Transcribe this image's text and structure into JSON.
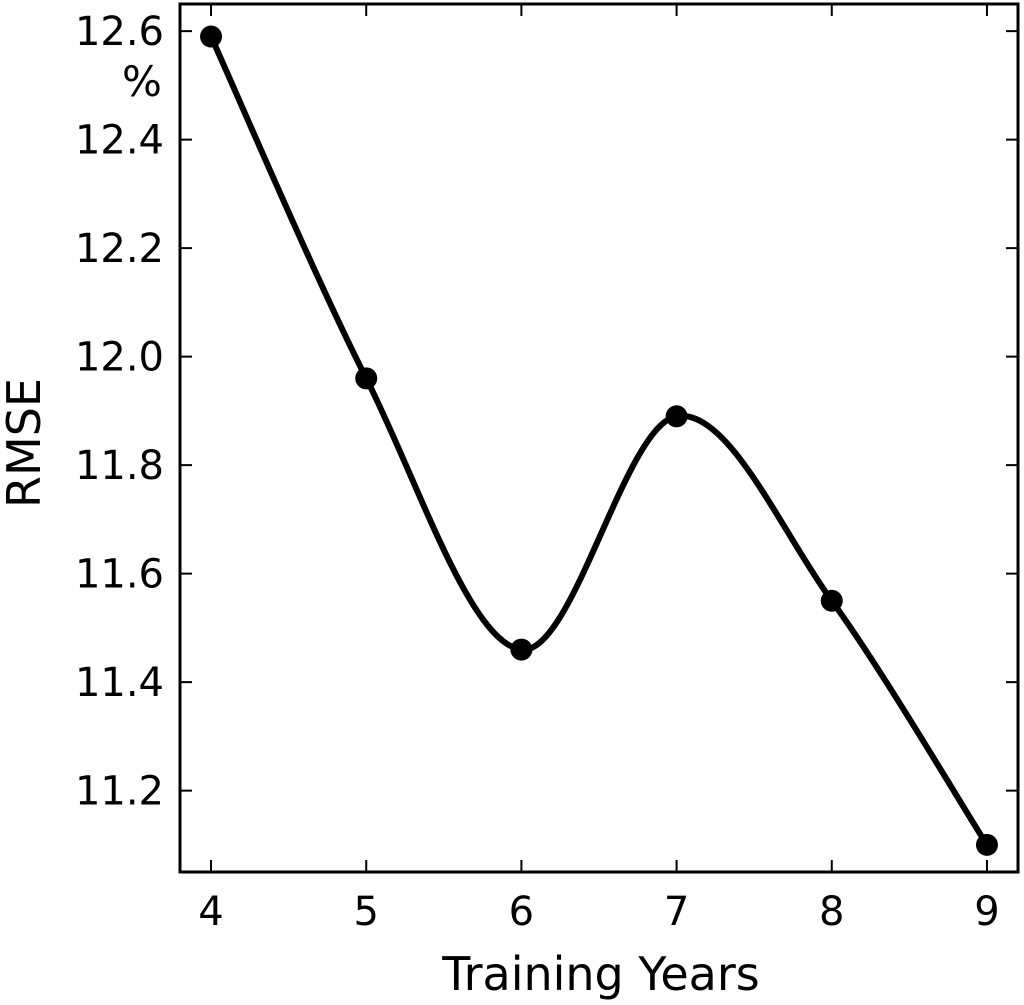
{
  "chart_data": {
    "type": "line",
    "title": "",
    "xlabel": "Training Years",
    "ylabel": "RMSE",
    "y_unit": "%",
    "x": [
      4,
      5,
      6,
      7,
      8,
      9
    ],
    "series": [
      {
        "values": [
          12.59,
          11.96,
          11.46,
          11.89,
          11.55,
          11.1
        ],
        "color": "#000000",
        "marker": "circle",
        "smooth": true
      }
    ],
    "xlim": [
      3.8,
      9.2
    ],
    "ylim": [
      11.05,
      12.65
    ],
    "xticks": [
      4,
      5,
      6,
      7,
      8,
      9
    ],
    "xtick_labels": [
      "4",
      "5",
      "6",
      "7",
      "8",
      "9"
    ],
    "yticks": [
      11.2,
      11.4,
      11.6,
      11.8,
      12.0,
      12.2,
      12.4,
      12.6
    ],
    "ytick_labels": [
      "11.2",
      "11.4",
      "11.6",
      "11.8",
      "12.0",
      "12.2",
      "12.4",
      "12.6"
    ],
    "grid": false,
    "legend": "none"
  }
}
